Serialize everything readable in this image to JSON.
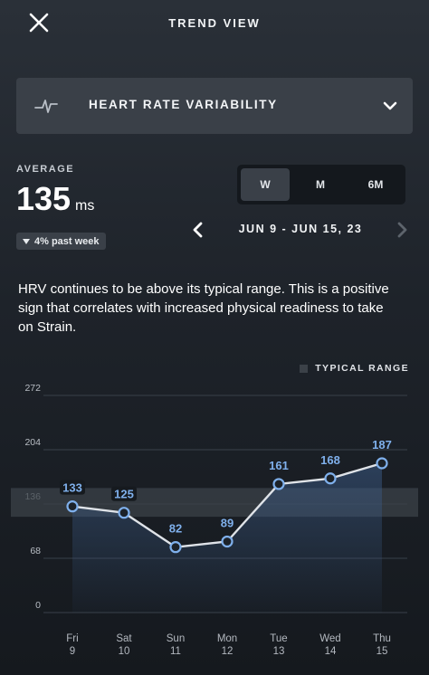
{
  "header": {
    "title": "TREND VIEW",
    "close_icon": "close-icon"
  },
  "metric": {
    "label": "HEART RATE VARIABILITY",
    "icon": "hrv-pulse-icon",
    "expand_icon": "chevron-down-icon"
  },
  "average": {
    "label": "AVERAGE",
    "value": "135",
    "unit": "ms",
    "delta_text": "4% past week",
    "delta_icon": "triangle-down-icon"
  },
  "range_tabs": [
    {
      "label": "W",
      "active": true
    },
    {
      "label": "M",
      "active": false
    },
    {
      "label": "6M",
      "active": false
    }
  ],
  "date_nav": {
    "range": "JUN 9 - JUN 15, 23",
    "prev_icon": "chevron-left-icon",
    "next_icon": "chevron-right-icon"
  },
  "summary": "HRV continues to be above its typical range. This is a positive sign that correlates with increased physical readiness to take on Strain.",
  "legend": {
    "label": "TYPICAL RANGE"
  },
  "colors": {
    "line": "#dfe3e8",
    "point": "#7fb0ec",
    "value_label": "#7fb0ec",
    "band": "#3b4148",
    "area": "#3a5a86"
  },
  "chart_data": {
    "type": "line",
    "categories": [
      "Fri 9",
      "Sat 10",
      "Sun 11",
      "Mon 12",
      "Tue 13",
      "Wed 14",
      "Thu 15"
    ],
    "x_days": [
      "Fri",
      "Sat",
      "Sun",
      "Mon",
      "Tue",
      "Wed",
      "Thu"
    ],
    "x_dates": [
      "9",
      "10",
      "11",
      "12",
      "13",
      "14",
      "15"
    ],
    "values": [
      133,
      125,
      82,
      89,
      161,
      168,
      187
    ],
    "yticks": [
      0,
      68,
      136,
      204,
      272
    ],
    "ylim": [
      0,
      272
    ],
    "typical_range": [
      120,
      156
    ],
    "grid": true,
    "legend_position": "top-right"
  }
}
